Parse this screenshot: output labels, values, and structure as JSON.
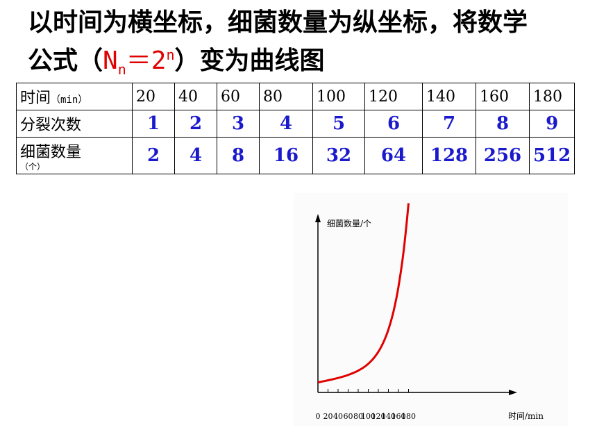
{
  "title": {
    "line1": "以时间为横坐标，细菌数量为纵坐标，将数学",
    "line2_prefix": "公式（",
    "formula_base": "N",
    "formula_sub": "n",
    "formula_mid": "＝2",
    "formula_sup": "n",
    "line2_suffix": "）变为曲线图"
  },
  "table": {
    "row_time_label": "时间",
    "row_time_unit": "（min）",
    "row_split_label": "分裂次数",
    "row_count_label": "细菌数量",
    "row_count_unit": "（个）",
    "times": [
      "20",
      "40",
      "60",
      "80",
      "100",
      "120",
      "140",
      "160",
      "180"
    ],
    "splits": [
      "1",
      "2",
      "3",
      "4",
      "5",
      "6",
      "7",
      "8",
      "9"
    ],
    "counts": [
      "2",
      "4",
      "8",
      "16",
      "32",
      "64",
      "128",
      "256",
      "512"
    ]
  },
  "chart_data": {
    "type": "line",
    "ylabel": "细菌数量/个",
    "xlabel": "时间/min",
    "x_ticks": [
      "0",
      "20",
      "40",
      "60",
      "80",
      "100",
      "120",
      "140",
      "160",
      "180"
    ],
    "x": [
      0,
      20,
      40,
      60,
      80,
      100,
      120,
      140,
      160,
      180
    ],
    "series": [
      {
        "values": [
          1,
          2,
          4,
          8,
          16,
          32,
          64,
          128,
          256,
          512
        ]
      }
    ],
    "line_color": "#e00000"
  }
}
